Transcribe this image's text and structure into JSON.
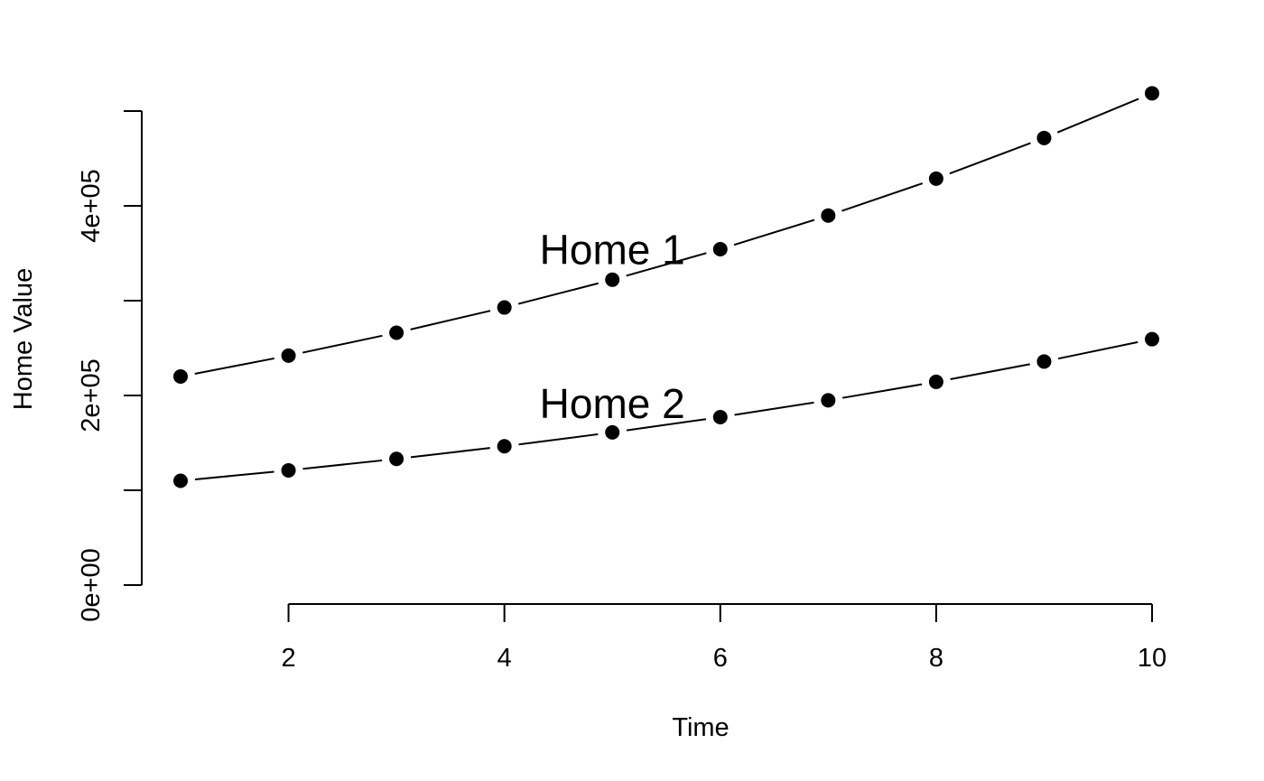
{
  "chart_data": {
    "type": "line",
    "title": "",
    "xlabel": "Time",
    "ylabel": "Home Value",
    "x": [
      1,
      2,
      3,
      4,
      5,
      6,
      7,
      8,
      9,
      10
    ],
    "xlim": [
      1,
      10
    ],
    "ylim": [
      0,
      500000
    ],
    "x_ticks": [
      2,
      4,
      6,
      8,
      10
    ],
    "x_tick_labels": [
      "2",
      "4",
      "6",
      "8",
      "10"
    ],
    "y_ticks": [
      0,
      100000,
      200000,
      300000,
      400000,
      500000
    ],
    "y_tick_labels": [
      "0e+00",
      "",
      "2e+05",
      "",
      "4e+05",
      ""
    ],
    "grid": false,
    "legend": "none",
    "series": [
      {
        "values": [
          220000,
          242000,
          266200,
          292820,
          322102,
          354312,
          389743,
          428718,
          471590,
          518748
        ],
        "color": "#000000",
        "marker": "filled-circle"
      },
      {
        "values": [
          110000,
          121000,
          133100,
          146410,
          161051,
          177156,
          194872,
          214359,
          235795,
          259374
        ],
        "color": "#000000",
        "marker": "filled-circle"
      }
    ],
    "annotations": [
      {
        "text": "Home 1",
        "x": 5,
        "y": 350000
      },
      {
        "text": "Home 2",
        "x": 5,
        "y": 188000
      }
    ]
  }
}
